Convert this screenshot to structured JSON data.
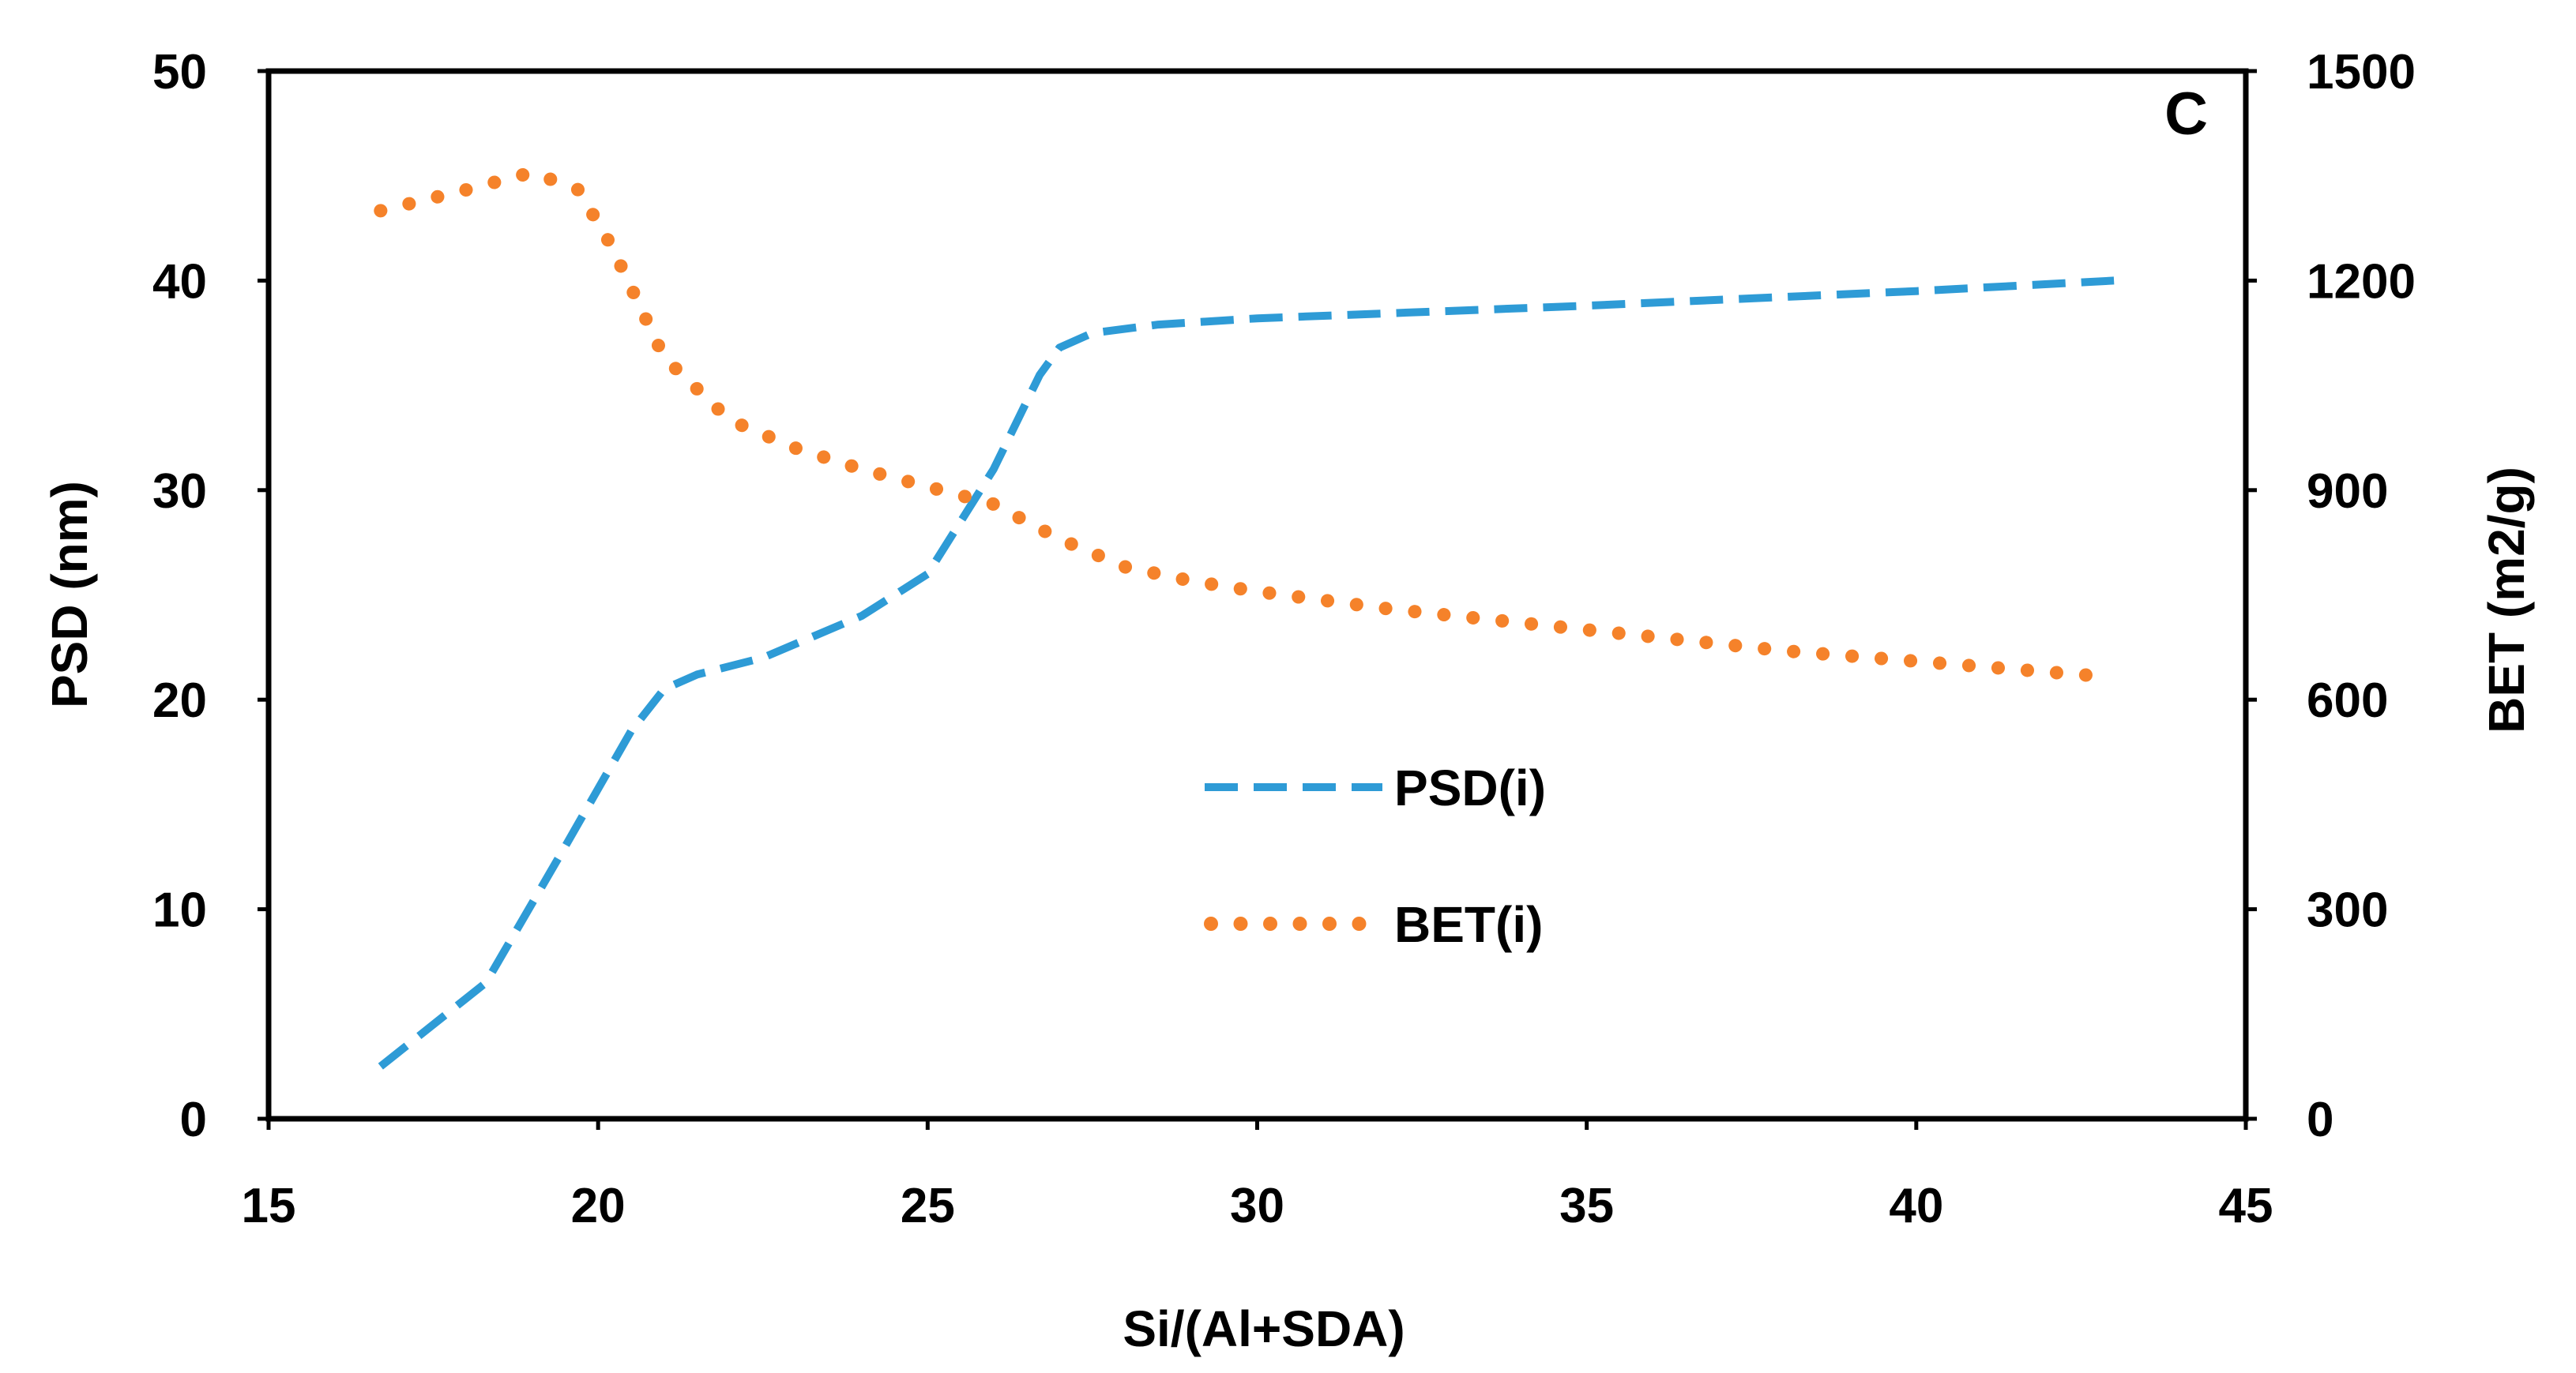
{
  "chart_data": {
    "type": "line",
    "panel_label": "C",
    "xlabel": "Si/(Al+SDA)",
    "ylabel": "PSD (nm)",
    "y2label": "BET (m2/g)",
    "xlim": [
      15,
      45
    ],
    "ylim": [
      0,
      50
    ],
    "y2lim": [
      0,
      1500
    ],
    "xticks": [
      15,
      20,
      25,
      30,
      35,
      40,
      45
    ],
    "yticks": [
      0,
      10,
      20,
      30,
      40,
      50
    ],
    "y2ticks": [
      0,
      300,
      600,
      900,
      1200,
      1500
    ],
    "legend_position": "center",
    "series": [
      {
        "name": "PSD(i)",
        "axis": "left",
        "style": "dashed",
        "color": "#2E9BD6",
        "x": [
          16.7,
          18.3,
          19.5,
          20.5,
          21,
          21.5,
          22.5,
          24,
          25,
          26,
          26.7,
          27,
          27.5,
          28.5,
          30,
          35,
          40,
          43
        ],
        "y": [
          2.5,
          6.5,
          13,
          18.5,
          20.5,
          21.2,
          22,
          24,
          26,
          31,
          35.5,
          36.8,
          37.5,
          37.9,
          38.2,
          38.8,
          39.5,
          40
        ]
      },
      {
        "name": "BET(i)",
        "axis": "right",
        "style": "dotted",
        "color": "#F5822A",
        "x": [
          16.7,
          18,
          19,
          19.7,
          20.2,
          21,
          22,
          23,
          24,
          25,
          26,
          27,
          28,
          29,
          30,
          32,
          35,
          38,
          40,
          43
        ],
        "y": [
          1300,
          1330,
          1355,
          1330,
          1250,
          1090,
          1000,
          960,
          930,
          905,
          880,
          830,
          790,
          770,
          755,
          730,
          700,
          670,
          655,
          632
        ]
      }
    ]
  }
}
